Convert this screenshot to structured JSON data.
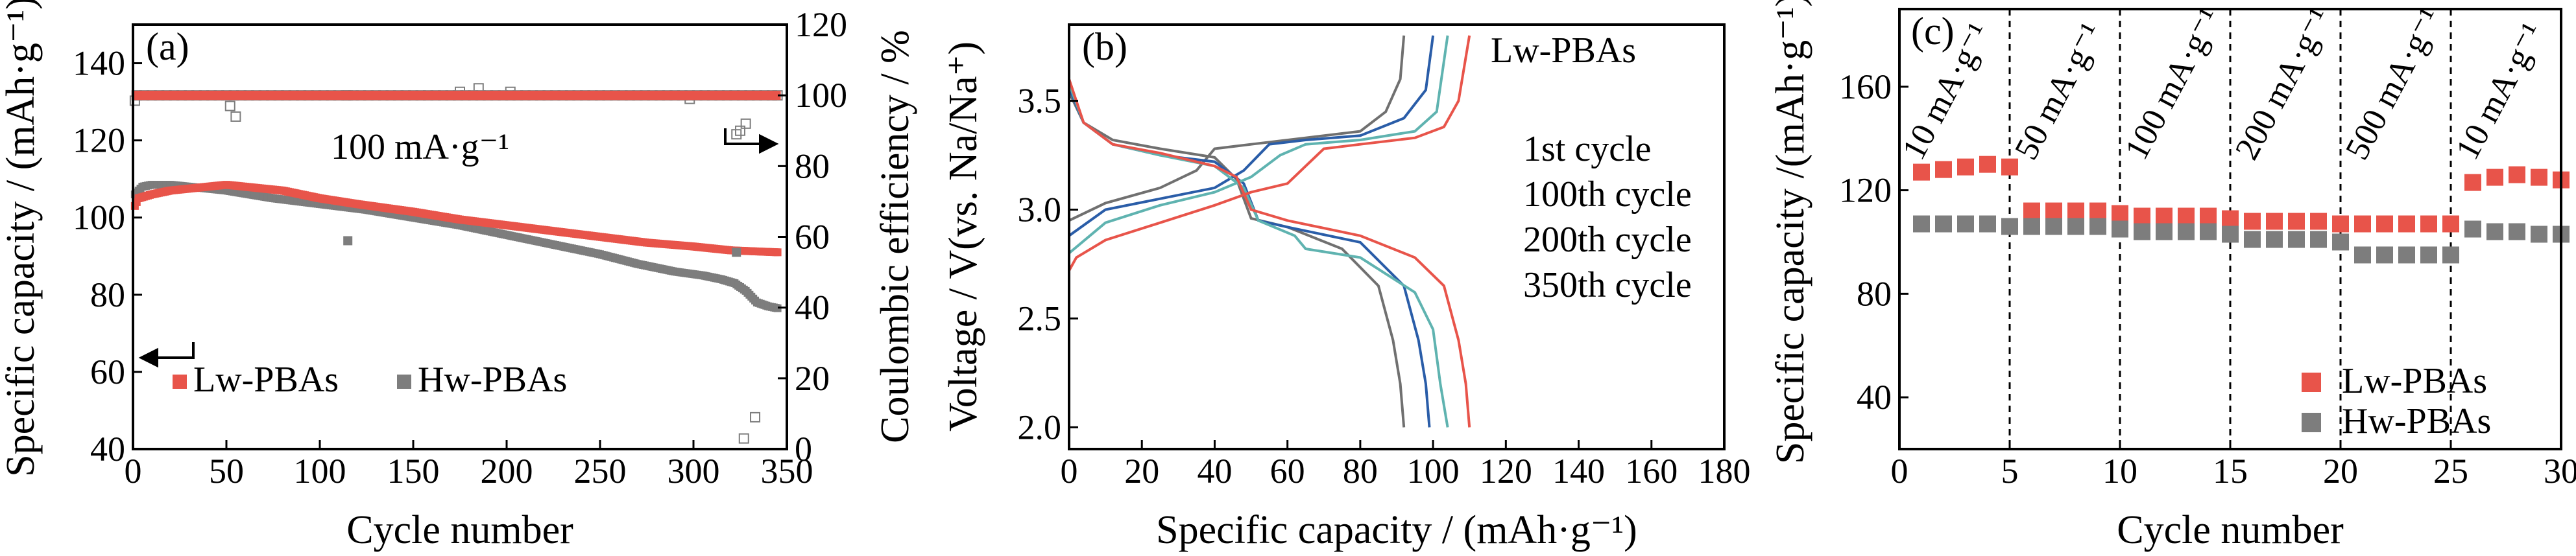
{
  "colors": {
    "lw": "#e8544a",
    "hw": "#7d7d7d",
    "cycle1": "#e8544a",
    "cycle100": "#5fb3b0",
    "cycle200": "#2a5da8",
    "cycle350": "#707070"
  },
  "chart_data": [
    {
      "type": "scatter",
      "panel_label": "(a)",
      "xlabel": "Cycle number",
      "ylabel": "Specific capacity / (mAh·g⁻¹)",
      "y2label": "Coulombic efficiency / %",
      "xlim": [
        0,
        350
      ],
      "ylim": [
        40,
        150
      ],
      "y2lim": [
        0,
        120
      ],
      "x_ticks": [
        "0",
        "50",
        "100",
        "150",
        "200",
        "250",
        "300",
        "350"
      ],
      "y_ticks": [
        "40",
        "60",
        "80",
        "100",
        "120",
        "140"
      ],
      "y2_ticks": [
        "0",
        "20",
        "40",
        "60",
        "80",
        "100",
        "120"
      ],
      "annotation": "100 mA·g⁻¹",
      "legend_position": "bottom-left",
      "series": [
        {
          "name": "Lw-PBAs",
          "axis": "left",
          "points": [
            [
              1,
              103
            ],
            [
              3,
              105
            ],
            [
              10,
              106
            ],
            [
              20,
              107
            ],
            [
              30,
              107.5
            ],
            [
              40,
              108
            ],
            [
              50,
              108.5
            ],
            [
              60,
              108
            ],
            [
              70,
              107.5
            ],
            [
              80,
              107
            ],
            [
              100,
              105
            ],
            [
              120,
              103.5
            ],
            [
              150,
              101.5
            ],
            [
              175,
              99.5
            ],
            [
              200,
              98
            ],
            [
              225,
              96.5
            ],
            [
              250,
              95
            ],
            [
              275,
              93.5
            ],
            [
              300,
              92.5
            ],
            [
              320,
              91.5
            ],
            [
              345,
              91
            ]
          ]
        },
        {
          "name": "Hw-PBAs",
          "axis": "left",
          "points": [
            [
              1,
              106
            ],
            [
              5,
              108
            ],
            [
              10,
              108.5
            ],
            [
              20,
              108.5
            ],
            [
              30,
              108
            ],
            [
              50,
              107
            ],
            [
              75,
              105
            ],
            [
              100,
              103.5
            ],
            [
              125,
              102
            ],
            [
              150,
              100
            ],
            [
              175,
              98
            ],
            [
              200,
              95.5
            ],
            [
              225,
              93
            ],
            [
              250,
              90.5
            ],
            [
              270,
              88
            ],
            [
              290,
              86
            ],
            [
              305,
              85
            ],
            [
              315,
              84
            ],
            [
              322,
              83
            ],
            [
              328,
              81
            ],
            [
              334,
              78
            ],
            [
              340,
              77
            ],
            [
              345,
              76.5
            ]
          ]
        },
        {
          "name": "Lw-PBAs CE",
          "axis": "right",
          "points": [
            [
              1,
              99
            ],
            [
              50,
              100
            ],
            [
              100,
              100
            ],
            [
              150,
              100
            ],
            [
              200,
              100
            ],
            [
              250,
              100
            ],
            [
              300,
              100
            ],
            [
              345,
              100
            ]
          ]
        },
        {
          "name": "Hw-PBAs CE",
          "axis": "right",
          "points": [
            [
              1,
              98.5
            ],
            [
              52,
              97
            ],
            [
              55,
              94
            ],
            [
              115,
              100
            ],
            [
              175,
              101
            ],
            [
              185,
              102
            ],
            [
              202,
              101
            ],
            [
              298,
              99
            ],
            [
              323,
              89
            ],
            [
              325,
              90
            ],
            [
              328,
              92
            ],
            [
              327,
              3
            ],
            [
              333,
              9
            ],
            [
              345,
              100
            ]
          ]
        }
      ]
    },
    {
      "type": "line",
      "panel_label": "(b)",
      "title": "Lw-PBAs",
      "xlabel": "Specific capacity / (mAh·g⁻¹)",
      "ylabel": "Voltage / V(vs. Na/Na⁺)",
      "xlim": [
        0,
        180
      ],
      "ylim": [
        1.9,
        3.85
      ],
      "x_ticks": [
        "0",
        "20",
        "40",
        "60",
        "80",
        "100",
        "120",
        "140",
        "160",
        "180"
      ],
      "y_ticks": [
        "2.0",
        "2.5",
        "3.0",
        "3.5"
      ],
      "legend_position": "right",
      "series": [
        {
          "name": "1st cycle",
          "charge": [
            [
              0,
              2.72
            ],
            [
              2,
              2.78
            ],
            [
              10,
              2.86
            ],
            [
              25,
              2.94
            ],
            [
              40,
              3.02
            ],
            [
              50,
              3.08
            ],
            [
              60,
              3.12
            ],
            [
              65,
              3.2
            ],
            [
              70,
              3.28
            ],
            [
              80,
              3.3
            ],
            [
              95,
              3.33
            ],
            [
              103,
              3.38
            ],
            [
              107,
              3.5
            ],
            [
              110,
              3.8
            ]
          ],
          "discharge": [
            [
              0,
              3.6
            ],
            [
              4,
              3.4
            ],
            [
              12,
              3.3
            ],
            [
              25,
              3.26
            ],
            [
              40,
              3.2
            ],
            [
              46,
              3.15
            ],
            [
              50,
              3.0
            ],
            [
              60,
              2.95
            ],
            [
              80,
              2.88
            ],
            [
              95,
              2.78
            ],
            [
              103,
              2.65
            ],
            [
              107,
              2.4
            ],
            [
              109,
              2.2
            ],
            [
              110,
              2.0
            ]
          ]
        },
        {
          "name": "100th cycle",
          "charge": [
            [
              0,
              2.8
            ],
            [
              10,
              2.94
            ],
            [
              25,
              3.02
            ],
            [
              40,
              3.08
            ],
            [
              50,
              3.15
            ],
            [
              58,
              3.25
            ],
            [
              65,
              3.3
            ],
            [
              80,
              3.32
            ],
            [
              95,
              3.36
            ],
            [
              101,
              3.45
            ],
            [
              104,
              3.8
            ]
          ],
          "discharge": [
            [
              0,
              3.58
            ],
            [
              4,
              3.4
            ],
            [
              12,
              3.3
            ],
            [
              25,
              3.25
            ],
            [
              40,
              3.2
            ],
            [
              48,
              3.1
            ],
            [
              52,
              2.95
            ],
            [
              62,
              2.88
            ],
            [
              65,
              2.82
            ],
            [
              80,
              2.78
            ],
            [
              95,
              2.62
            ],
            [
              100,
              2.45
            ],
            [
              102,
              2.2
            ],
            [
              104,
              2.0
            ]
          ]
        },
        {
          "name": "200th cycle",
          "charge": [
            [
              0,
              2.88
            ],
            [
              10,
              3.0
            ],
            [
              25,
              3.05
            ],
            [
              40,
              3.1
            ],
            [
              48,
              3.18
            ],
            [
              55,
              3.3
            ],
            [
              65,
              3.32
            ],
            [
              80,
              3.34
            ],
            [
              92,
              3.42
            ],
            [
              98,
              3.55
            ],
            [
              100,
              3.8
            ]
          ],
          "discharge": [
            [
              0,
              3.56
            ],
            [
              4,
              3.4
            ],
            [
              12,
              3.3
            ],
            [
              25,
              3.25
            ],
            [
              40,
              3.22
            ],
            [
              48,
              3.12
            ],
            [
              52,
              2.95
            ],
            [
              60,
              2.92
            ],
            [
              80,
              2.85
            ],
            [
              92,
              2.65
            ],
            [
              96,
              2.4
            ],
            [
              98,
              2.2
            ],
            [
              99,
              2.0
            ]
          ]
        },
        {
          "name": "350th cycle",
          "charge": [
            [
              0,
              2.95
            ],
            [
              10,
              3.03
            ],
            [
              25,
              3.1
            ],
            [
              35,
              3.18
            ],
            [
              40,
              3.28
            ],
            [
              50,
              3.3
            ],
            [
              65,
              3.33
            ],
            [
              80,
              3.36
            ],
            [
              87,
              3.45
            ],
            [
              91,
              3.6
            ],
            [
              92,
              3.8
            ]
          ],
          "discharge": [
            [
              0,
              3.54
            ],
            [
              4,
              3.4
            ],
            [
              12,
              3.32
            ],
            [
              25,
              3.28
            ],
            [
              40,
              3.24
            ],
            [
              46,
              3.14
            ],
            [
              50,
              2.96
            ],
            [
              60,
              2.92
            ],
            [
              75,
              2.82
            ],
            [
              85,
              2.65
            ],
            [
              89,
              2.4
            ],
            [
              91,
              2.2
            ],
            [
              92,
              2.0
            ]
          ]
        }
      ]
    },
    {
      "type": "scatter",
      "panel_label": "(c)",
      "xlabel": "Cycle number",
      "ylabel": "Specific capacity /(mAh·g⁻¹)",
      "xlim": [
        0,
        30
      ],
      "ylim": [
        20,
        190
      ],
      "x_ticks": [
        "0",
        "5",
        "10",
        "15",
        "20",
        "25",
        "30"
      ],
      "y_ticks": [
        "40",
        "80",
        "120",
        "160"
      ],
      "rate_labels": [
        "10 mA·g⁻¹",
        "50 mA·g⁻¹",
        "100 mA·g⁻¹",
        "200 mA·g⁻¹",
        "500 mA·g⁻¹",
        "10 mA·g⁻¹"
      ],
      "dividers": [
        5,
        10,
        15,
        20,
        25
      ],
      "legend_position": "bottom-right",
      "series": [
        {
          "name": "Lw-PBAs",
          "x": [
            1,
            2,
            3,
            4,
            5,
            6,
            7,
            8,
            9,
            10,
            11,
            12,
            13,
            14,
            15,
            16,
            17,
            18,
            19,
            20,
            21,
            22,
            23,
            24,
            25,
            26,
            27,
            28,
            29,
            30
          ],
          "values": [
            127,
            128,
            129,
            130,
            129,
            112,
            112,
            112,
            112,
            111,
            110,
            110,
            110,
            110,
            109,
            108,
            108,
            108,
            108,
            107,
            107,
            107,
            107,
            107,
            107,
            123,
            125,
            126,
            125,
            124
          ]
        },
        {
          "name": "Hw-PBAs",
          "x": [
            1,
            2,
            3,
            4,
            5,
            6,
            7,
            8,
            9,
            10,
            11,
            12,
            13,
            14,
            15,
            16,
            17,
            18,
            19,
            20,
            21,
            22,
            23,
            24,
            25,
            26,
            27,
            28,
            29,
            30
          ],
          "values": [
            107,
            107,
            107,
            107,
            106,
            106,
            106,
            106,
            106,
            105,
            104,
            104,
            104,
            104,
            103,
            101,
            101,
            101,
            101,
            100,
            95,
            95,
            95,
            95,
            95,
            105,
            104,
            104,
            103,
            103
          ]
        }
      ]
    }
  ]
}
